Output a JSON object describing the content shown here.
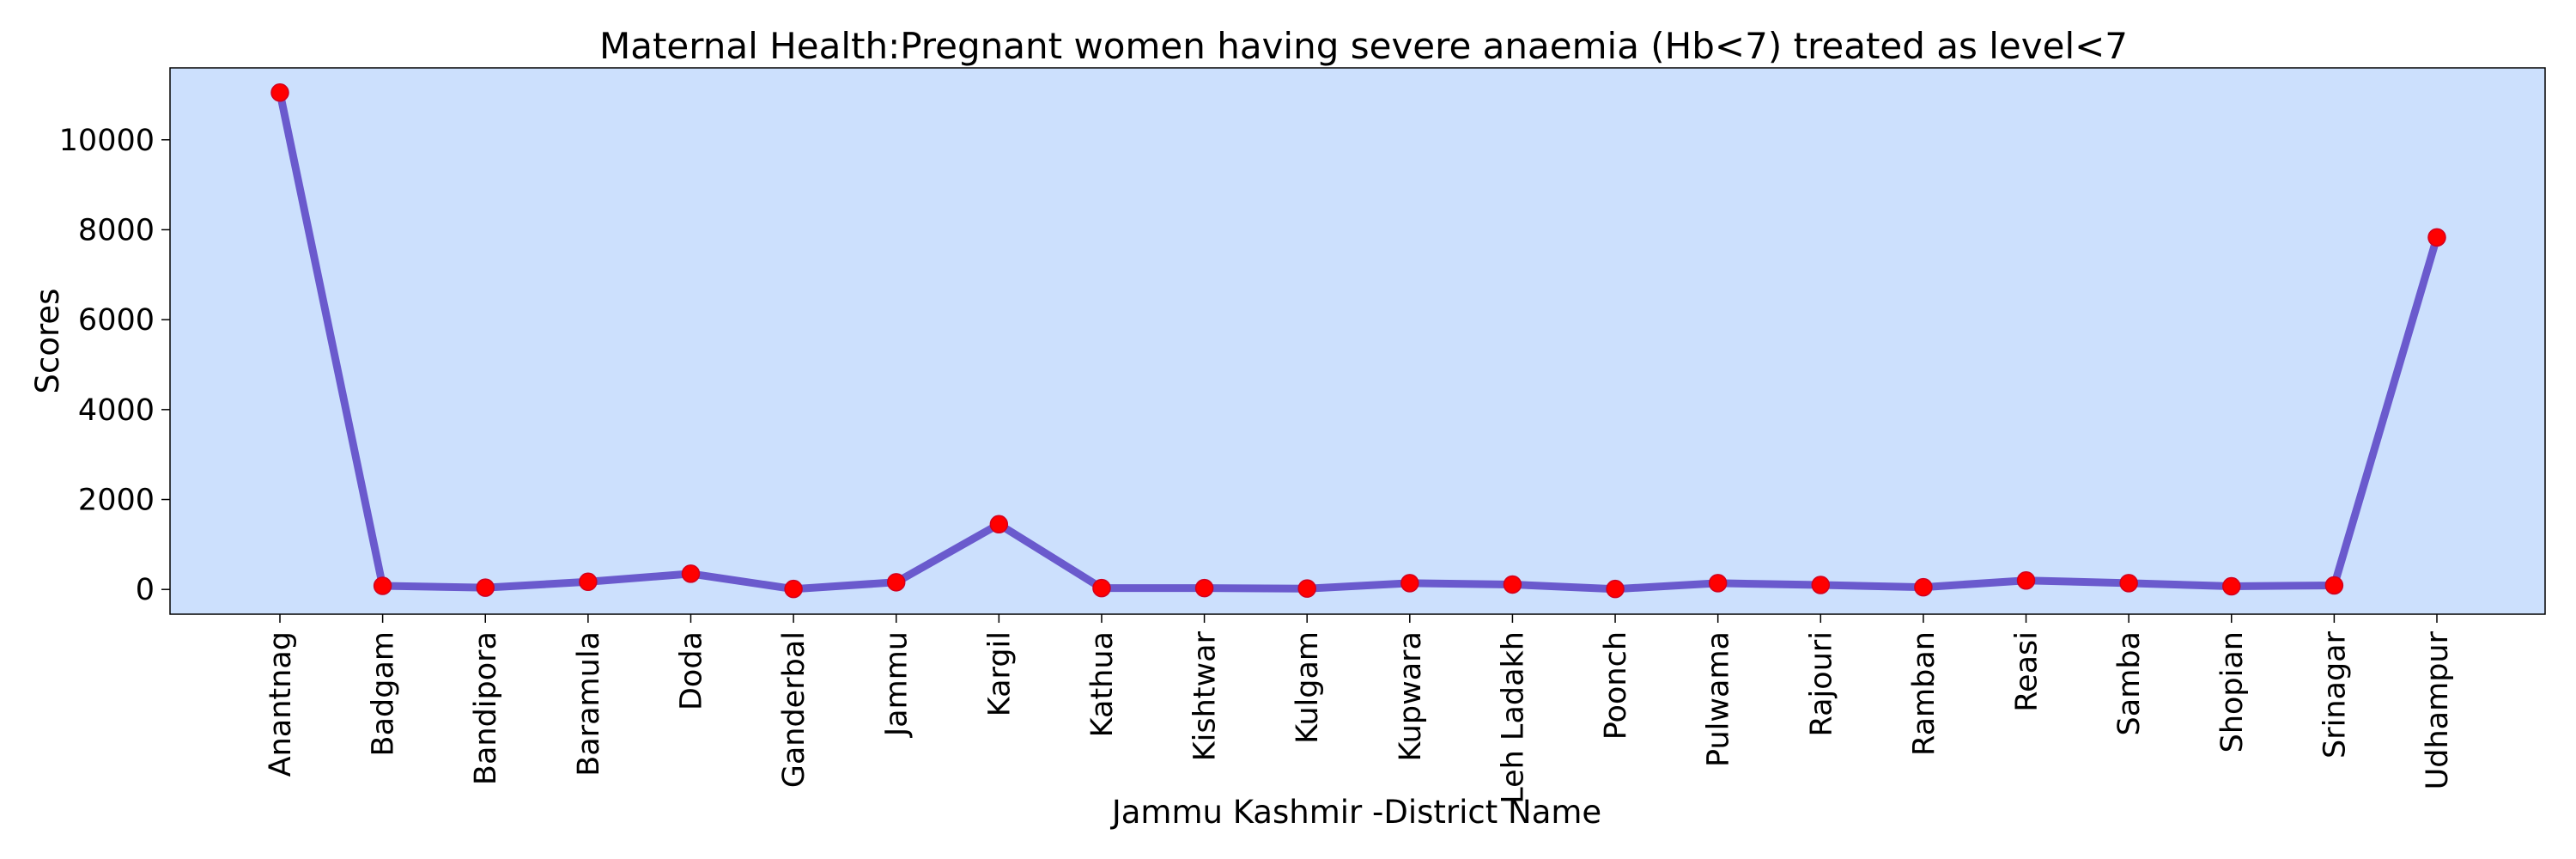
{
  "chart_data": {
    "type": "line",
    "title": "Maternal Health:Pregnant women having severe anaemia (Hb<7) treated as level<7",
    "xlabel": "Jammu Kashmir -District Name",
    "ylabel": "Scores",
    "categories": [
      "Anantnag",
      "Badgam",
      "Bandipora",
      "Baramula",
      "Doda",
      "Ganderbal",
      "Jammu",
      "Kargil",
      "Kathua",
      "Kishtwar",
      "Kulgam",
      "Kupwara",
      "Leh Ladakh",
      "Poonch",
      "Pulwama",
      "Rajouri",
      "Ramban",
      "Reasi",
      "Samba",
      "Shopian",
      "Srinagar",
      "Udhampur"
    ],
    "series": [
      {
        "values": [
          11050,
          80,
          40,
          170,
          350,
          10,
          160,
          1450,
          30,
          30,
          20,
          140,
          110,
          10,
          140,
          100,
          50,
          200,
          140,
          70,
          90,
          7830
        ]
      }
    ],
    "ylim": [
      -550,
      11600
    ],
    "yticks": [
      0,
      2000,
      4000,
      6000,
      8000,
      10000
    ],
    "grid": false,
    "legend": "none",
    "colors": {
      "plot_background": "#cce0fd",
      "line": "#6a5acd",
      "marker": "#ff0000",
      "marker_edge": "#d2001e"
    }
  }
}
